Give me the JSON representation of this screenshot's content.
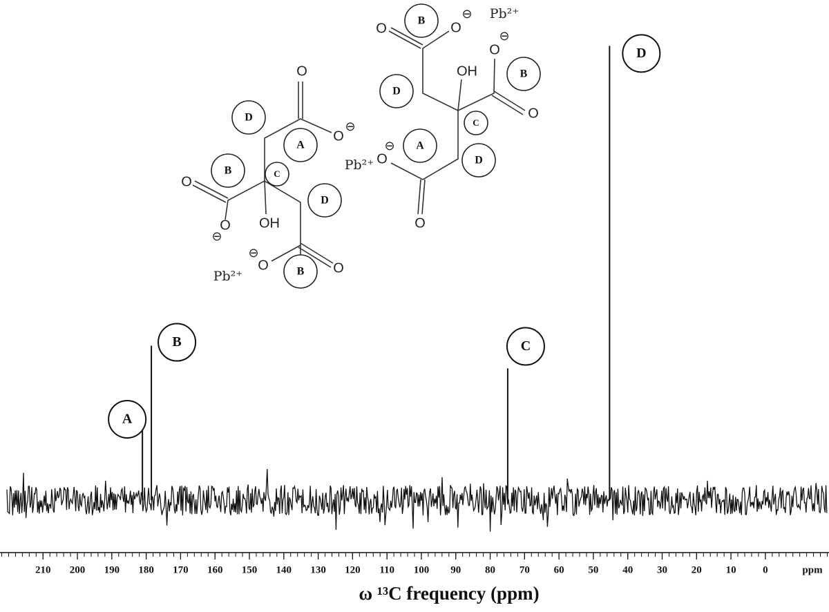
{
  "chart_data": {
    "type": "spectrum",
    "xlabel": "ω ¹³C frequency (ppm)",
    "xunit": "ppm",
    "xlim": [
      222.5,
      -18.5
    ],
    "xticks": [
      210,
      200,
      190,
      180,
      170,
      160,
      150,
      140,
      130,
      120,
      110,
      100,
      90,
      80,
      70,
      60,
      50,
      40,
      30,
      20,
      10,
      0
    ],
    "ylim": [
      -10,
      104
    ],
    "color": "#111111",
    "peaks": {
      "x": [
        181.1,
        178.5,
        74.9,
        45.3
      ],
      "values": [
        16,
        34,
        29,
        100
      ],
      "labels": [
        "A",
        "B",
        "C",
        "D"
      ]
    }
  },
  "structure": {
    "labels": [
      "O",
      "D",
      "A",
      "O",
      "⊖",
      "B",
      "C",
      "O",
      "D",
      "OH",
      "O",
      "⊖",
      "⊖",
      "O",
      "B",
      "O",
      "Pb²⁺",
      "B",
      "O",
      "O",
      "⊖",
      "Pb²⁺",
      "⊖",
      "O",
      "OH",
      "B",
      "D",
      "O",
      "C",
      "A",
      "⊖",
      "O",
      "Pb²⁺",
      "D",
      "O"
    ]
  }
}
